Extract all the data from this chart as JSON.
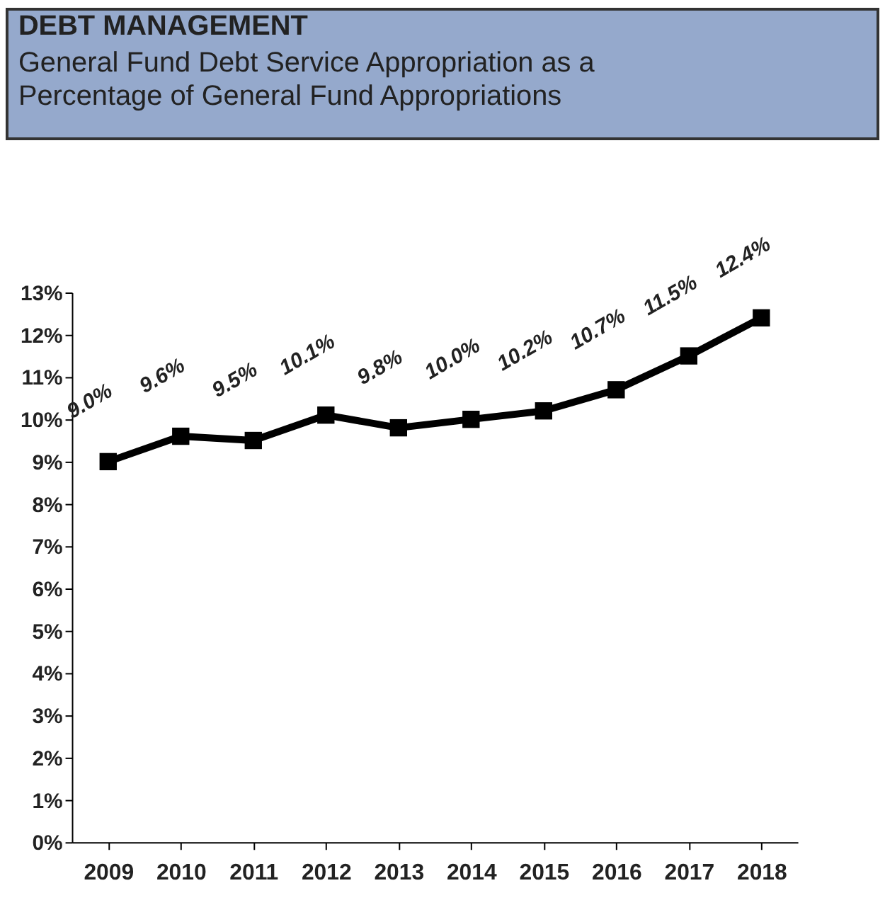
{
  "chart_data": {
    "type": "line",
    "title": "DEBT MANAGEMENT",
    "subtitle": "General Fund Debt Service Appropriation as a\nPercentage of General Fund Appropriations",
    "categories": [
      "2009",
      "2010",
      "2011",
      "2012",
      "2013",
      "2014",
      "2015",
      "2016",
      "2017",
      "2018"
    ],
    "series": [
      {
        "color": "#000000",
        "values": [
          9.0,
          9.6,
          9.5,
          10.1,
          9.8,
          10.0,
          10.2,
          10.7,
          11.5,
          12.4
        ],
        "value_labels": [
          "9.0%",
          "9.6%",
          "9.5%",
          "10.1%",
          "9.8%",
          "10.0%",
          "10.2%",
          "10.7%",
          "11.5%",
          "12.4%"
        ]
      }
    ],
    "ylim": [
      0,
      13
    ],
    "yticks": [
      {
        "value": 0,
        "label": "0%"
      },
      {
        "value": 1,
        "label": "1%"
      },
      {
        "value": 2,
        "label": "2%"
      },
      {
        "value": 3,
        "label": "3%"
      },
      {
        "value": 4,
        "label": "4%"
      },
      {
        "value": 5,
        "label": "5%"
      },
      {
        "value": 6,
        "label": "6%"
      },
      {
        "value": 7,
        "label": "7%"
      },
      {
        "value": 8,
        "label": "8%"
      },
      {
        "value": 9,
        "label": "9%"
      },
      {
        "value": 10,
        "label": "10%"
      },
      {
        "value": 11,
        "label": "11%"
      },
      {
        "value": 12,
        "label": "12%"
      },
      {
        "value": 13,
        "label": "13%"
      }
    ],
    "grid": false,
    "marker": "square",
    "line_style": "solid"
  }
}
